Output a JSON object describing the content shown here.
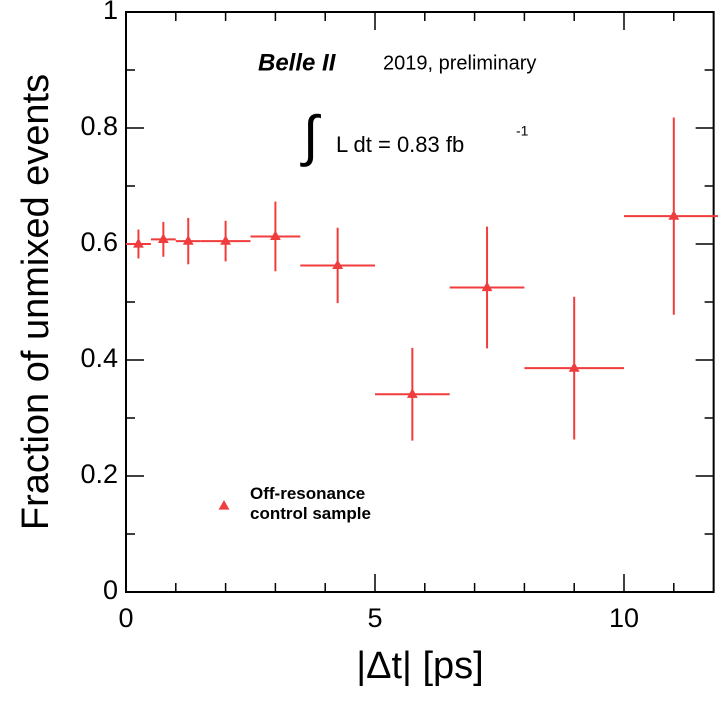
{
  "chart_data": {
    "type": "errorbar",
    "x_label": "|Δt| [ps]",
    "y_label": "Fraction of unmixed events",
    "annotations": [
      "Belle II",
      "2019, preliminary",
      "∫",
      "L dt = 0.83 fb",
      "-1"
    ],
    "xlim": [
      0,
      11.8
    ],
    "ylim": [
      0,
      1
    ],
    "xticks": [
      0,
      5,
      10
    ],
    "yticks": [
      0,
      0.2,
      0.4,
      0.6,
      0.8,
      1
    ],
    "xminor_ticks": [
      1,
      2,
      3,
      4,
      6,
      7,
      8,
      9,
      11
    ],
    "yminor_ticks": [
      0.1,
      0.3,
      0.5,
      0.7,
      0.9
    ],
    "series": [
      {
        "name": "Off-resonance control sample",
        "color": "#f03c3c",
        "x": [
          0.25,
          0.75,
          1.25,
          2.0,
          3.0,
          4.25,
          5.75,
          7.25,
          9.0,
          11.0
        ],
        "xerr": [
          0.25,
          0.25,
          0.25,
          0.5,
          0.5,
          0.75,
          0.75,
          0.75,
          1.0,
          1.0
        ],
        "values": [
          0.6,
          0.608,
          0.605,
          0.605,
          0.613,
          0.563,
          0.341,
          0.525,
          0.386,
          0.648
        ],
        "yerr": [
          0.025,
          0.03,
          0.04,
          0.035,
          0.06,
          0.065,
          0.08,
          0.105,
          0.123,
          0.17
        ]
      }
    ]
  }
}
